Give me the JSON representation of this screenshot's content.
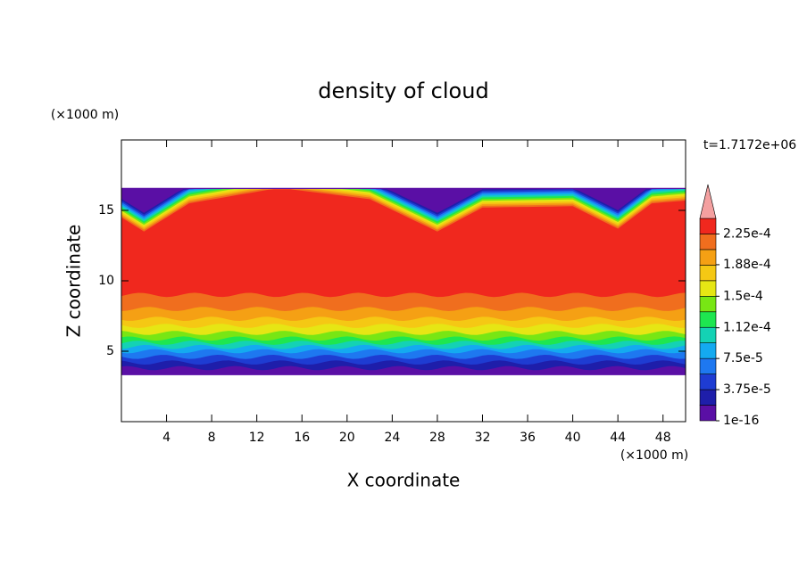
{
  "chart_data": {
    "type": "contour",
    "title": "density of cloud",
    "x_label": "X coordinate",
    "y_label": "Z coordinate",
    "x_unit": "(×1000 m)",
    "y_unit": "(×1000 m)",
    "annotation": "t=1.7172e+06",
    "xlim": [
      0,
      50
    ],
    "ylim": [
      0,
      20
    ],
    "xticks": [
      4,
      8,
      12,
      16,
      20,
      24,
      28,
      32,
      36,
      40,
      44,
      48
    ],
    "yticks": [
      5,
      10,
      15
    ],
    "colorbar": {
      "clim": [
        1e-16,
        0.00024375
      ],
      "colors": [
        "#5a0fa5",
        "#1e1eaa",
        "#1e3cd2",
        "#1e78f0",
        "#14aaf0",
        "#14d2b4",
        "#1ee650",
        "#78e614",
        "#e6e614",
        "#f5c814",
        "#f5a014",
        "#f06e1e",
        "#f0281e"
      ],
      "extend_color": "#f4a0a0",
      "ticks": [
        {
          "value": 1e-16,
          "label": "1e-16"
        },
        {
          "value": 3.75e-05,
          "label": "3.75e-5"
        },
        {
          "value": 7.5e-05,
          "label": "7.5e-5"
        },
        {
          "value": 0.000112,
          "label": "1.12e-4"
        },
        {
          "value": 0.00015,
          "label": "1.5e-4"
        },
        {
          "value": 0.000188,
          "label": "1.88e-4"
        },
        {
          "value": 0.000225,
          "label": "2.25e-4"
        }
      ]
    }
  }
}
